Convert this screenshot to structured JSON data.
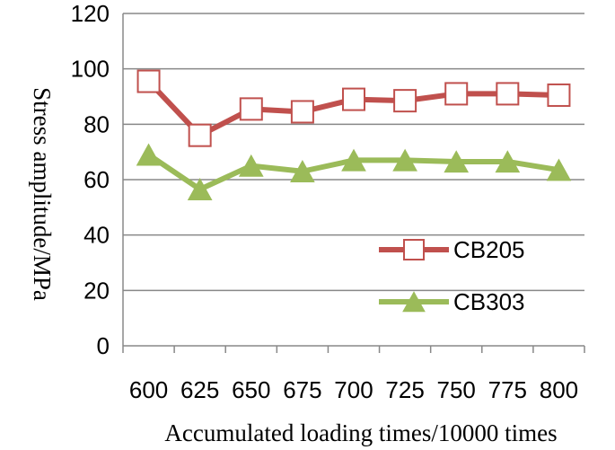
{
  "chart_data": {
    "type": "line",
    "x": [
      600,
      625,
      650,
      675,
      700,
      725,
      750,
      775,
      800
    ],
    "xlabel": "Accumulated loading times/10000 times",
    "ylabel": "Stress amplitude/MPa",
    "ylim": [
      0,
      120
    ],
    "yticks": [
      0,
      20,
      40,
      60,
      80,
      100,
      120
    ],
    "grid": "horizontal",
    "legend": "right",
    "series": [
      {
        "name": "CB205",
        "values": [
          95.5,
          76,
          85.5,
          84.5,
          89,
          88.5,
          91,
          91,
          90.5
        ],
        "color": "#c0504d",
        "marker": "open-square"
      },
      {
        "name": "CB303",
        "values": [
          69,
          56.5,
          65,
          63,
          67,
          67,
          66.5,
          66.5,
          63.5
        ],
        "color": "#9bbb59",
        "marker": "filled-triangle"
      }
    ]
  }
}
